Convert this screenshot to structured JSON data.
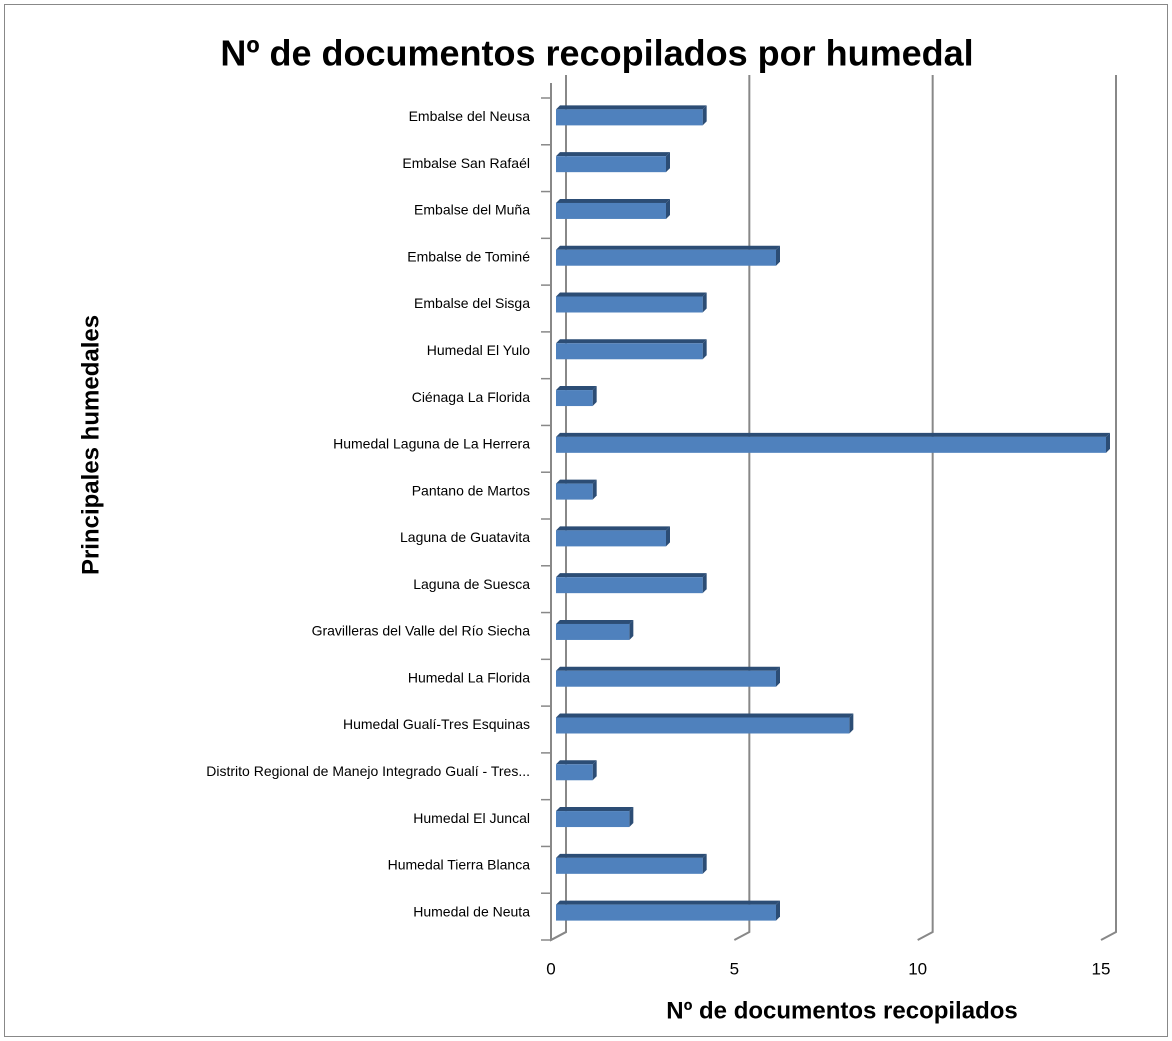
{
  "chart_data": {
    "type": "bar",
    "orientation": "horizontal",
    "title": "Nº de documentos recopilados por humedal",
    "x_label": "Nº de documentos recopilados",
    "y_label": "Principales humedales",
    "categories": [
      "Embalse del Neusa",
      "Embalse San Rafaél",
      "Embalse del Muña",
      "Embalse de Tominé",
      "Embalse del Sisga",
      "Humedal El Yulo",
      "Ciénaga La Florida",
      "Humedal Laguna de La Herrera",
      "Pantano de Martos",
      "Laguna de Guatavita",
      "Laguna de Suesca",
      "Gravilleras del Valle del Río Siecha",
      "Humedal La Florida",
      "Humedal Gualí-Tres Esquinas",
      "Distrito Regional de Manejo Integrado Gualí - Tres...",
      "Humedal El Juncal",
      "Humedal Tierra Blanca",
      "Humedal de Neuta"
    ],
    "values": [
      4,
      3,
      3,
      6,
      4,
      4,
      1,
      15,
      1,
      3,
      4,
      2,
      6,
      8,
      1,
      2,
      4,
      6
    ],
    "color": "#4f81bd",
    "xlim": [
      0,
      15
    ],
    "xticks": [
      0,
      5,
      10,
      15
    ],
    "grid": true
  }
}
